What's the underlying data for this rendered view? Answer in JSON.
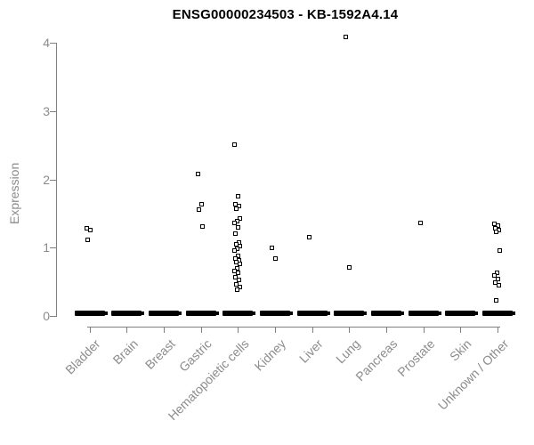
{
  "chart_data": {
    "type": "scatter",
    "title": "ENSG00000234503 - KB-1592A4.14",
    "xlabel": "",
    "ylabel": "Expression",
    "ylim": [
      0,
      4
    ],
    "yticks": [
      0,
      1,
      2,
      3,
      4
    ],
    "grid": false,
    "legend": "none",
    "marker": "small-open-square",
    "marker_color": "#000000",
    "axis_color": "#808080",
    "tick_label_color": "#8c8c8c",
    "title_color": "#000000",
    "background_color": "#ffffff",
    "categories": [
      "Bladder",
      "Brain",
      "Breast",
      "Gastric",
      "Hematopoietic cells",
      "Kidney",
      "Liver",
      "Lung",
      "Pancreas",
      "Prostate",
      "Skin",
      "Unknown / Other"
    ],
    "series": [
      {
        "category": "Bladder",
        "values": [
          1.28,
          1.25,
          1.11
        ],
        "zero_cluster": true
      },
      {
        "category": "Brain",
        "values": [],
        "zero_cluster": true
      },
      {
        "category": "Breast",
        "values": [],
        "zero_cluster": true
      },
      {
        "category": "Gastric",
        "values": [
          2.07,
          1.63,
          1.55,
          1.3
        ],
        "zero_cluster": true
      },
      {
        "category": "Hematopoietic cells",
        "values": [
          2.5,
          1.74,
          1.63,
          1.6,
          1.56,
          1.42,
          1.38,
          1.35,
          1.29,
          1.2,
          1.07,
          1.04,
          1.01,
          0.98,
          0.95,
          0.87,
          0.84,
          0.81,
          0.78,
          0.75,
          0.69,
          0.65,
          0.62,
          0.56,
          0.52,
          0.46,
          0.42,
          0.38
        ],
        "zero_cluster": true
      },
      {
        "category": "Kidney",
        "values": [
          0.99,
          0.83
        ],
        "zero_cluster": true
      },
      {
        "category": "Liver",
        "values": [
          1.15
        ],
        "zero_cluster": true
      },
      {
        "category": "Lung",
        "values": [
          4.08,
          0.7
        ],
        "zero_cluster": true
      },
      {
        "category": "Pancreas",
        "values": [],
        "zero_cluster": true
      },
      {
        "category": "Prostate",
        "values": [
          1.36
        ],
        "zero_cluster": true
      },
      {
        "category": "Skin",
        "values": [],
        "zero_cluster": true
      },
      {
        "category": "Unknown / Other",
        "values": [
          1.34,
          1.31,
          1.28,
          1.25,
          1.22,
          0.95,
          0.63,
          0.58,
          0.53,
          0.48,
          0.44,
          0.22
        ],
        "zero_cluster": true
      }
    ]
  }
}
